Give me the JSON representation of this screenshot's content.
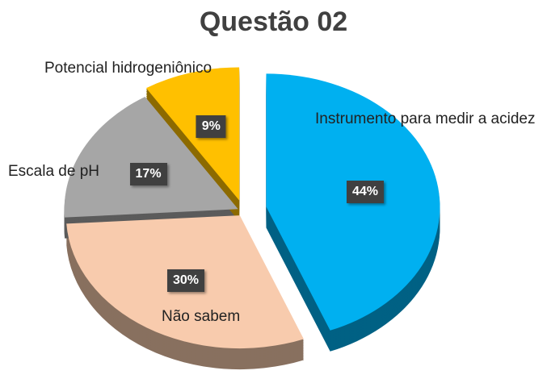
{
  "chart_data": {
    "type": "pie",
    "title": "Questão 02",
    "categories": [
      "Instrumento para medir a acidez",
      "Não sabem",
      "Escala de pH",
      "Potencial hidrogeniônico"
    ],
    "values": [
      44,
      30,
      17,
      9
    ],
    "value_labels": [
      "44%",
      "30%",
      "17%",
      "9%"
    ],
    "colors": [
      "#00b0f0",
      "#f8cbad",
      "#a6a6a6",
      "#ffc000"
    ]
  }
}
